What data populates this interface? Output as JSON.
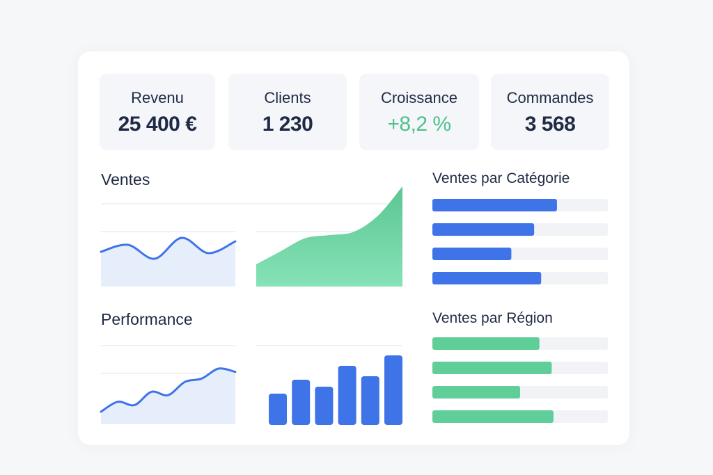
{
  "kpis": [
    {
      "label": "Revenu",
      "value": "25 400 €"
    },
    {
      "label": "Clients",
      "value": "1 230"
    },
    {
      "label": "Croissance",
      "value": "+8,2 %"
    },
    {
      "label": "Commandes",
      "value": "3 568"
    }
  ],
  "sections": {
    "ventes": "Ventes",
    "performance": "Performance",
    "categorie": "Ventes par Catégorie",
    "region": "Ventes par Région"
  },
  "colors": {
    "blue": "#3f73e8",
    "green": "#5fce98",
    "positive": "#4fc28a",
    "track": "#f1f3f7",
    "line_fill": "#e7eefb"
  },
  "chart_data": [
    {
      "type": "line",
      "name": "ventes-line",
      "values": [
        50,
        60,
        40,
        70,
        48,
        65
      ]
    },
    {
      "type": "area",
      "name": "ventes-area",
      "values": [
        20,
        40,
        60,
        65,
        70,
        95,
        140
      ]
    },
    {
      "type": "line",
      "name": "performance-line",
      "values": [
        10,
        25,
        20,
        40,
        35,
        55,
        60,
        75,
        70
      ]
    },
    {
      "type": "bar",
      "name": "performance-bars",
      "values": [
        45,
        65,
        55,
        85,
        70,
        100
      ]
    },
    {
      "type": "bar",
      "name": "ventes-par-categorie",
      "values": [
        71,
        58,
        45,
        62
      ],
      "max": 100
    },
    {
      "type": "bar",
      "name": "ventes-par-region",
      "values": [
        61,
        68,
        50,
        69
      ],
      "max": 100
    }
  ]
}
